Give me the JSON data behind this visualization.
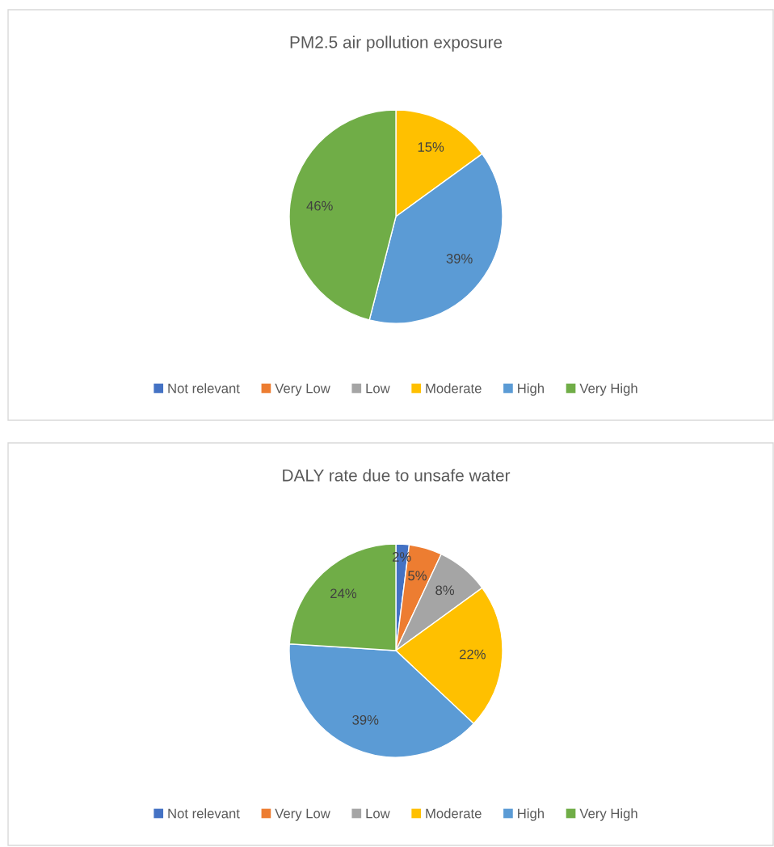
{
  "chart_data": [
    {
      "type": "pie",
      "title": "PM2.5 air pollution exposure",
      "categories": [
        "Not relevant",
        "Very Low",
        "Low",
        "Moderate",
        "High",
        "Very High"
      ],
      "values": [
        0,
        0,
        0,
        15,
        39,
        46
      ],
      "colors": [
        "#4472c4",
        "#ed7d31",
        "#a5a5a5",
        "#ffc000",
        "#5b9bd5",
        "#70ad47"
      ],
      "value_labels": [
        null,
        null,
        null,
        "15%",
        "39%",
        "46%"
      ],
      "legend": "bottom"
    },
    {
      "type": "pie",
      "title": "DALY rate due to unsafe water",
      "categories": [
        "Not relevant",
        "Very Low",
        "Low",
        "Moderate",
        "High",
        "Very High"
      ],
      "values": [
        2,
        5,
        8,
        22,
        39,
        24
      ],
      "colors": [
        "#4472c4",
        "#ed7d31",
        "#a5a5a5",
        "#ffc000",
        "#5b9bd5",
        "#70ad47"
      ],
      "value_labels": [
        "2%",
        "5%",
        "8%",
        "22%",
        "39%",
        "24%"
      ],
      "legend": "bottom"
    }
  ]
}
